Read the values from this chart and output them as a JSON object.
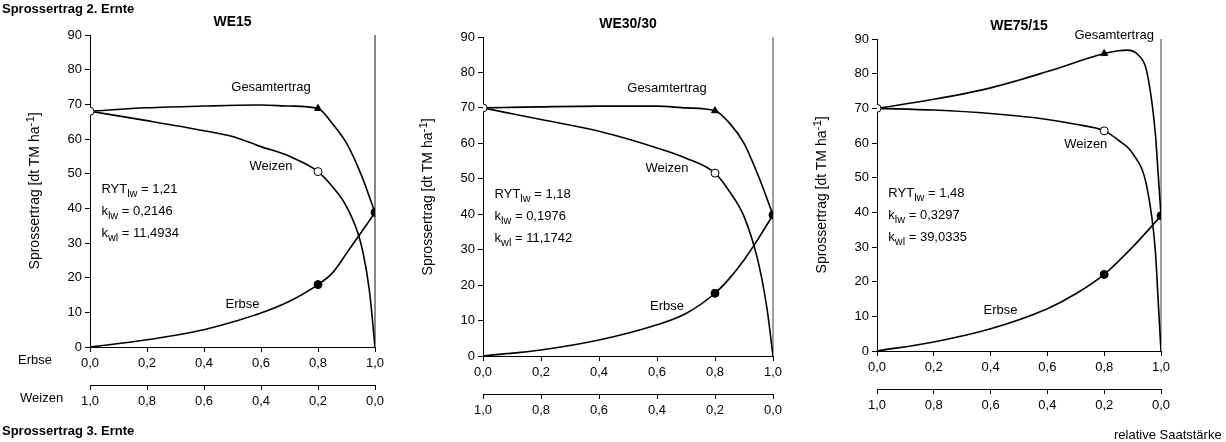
{
  "chart_data": [
    {
      "type": "other",
      "title": "Sprossertrag 2. Ernte",
      "annotations": [
        "Sprossertrag 3. Ernte",
        "relative Saatstärke"
      ]
    },
    {
      "type": "line",
      "title": "WE15",
      "ylabel": "Sprossertrag [dt TM ha$^{-1}$]",
      "xlabel": "Erbse",
      "x2label": "Weizen",
      "xlim": [
        0,
        1
      ],
      "xticks": [
        {
          "value": 0,
          "label": "0,0"
        },
        {
          "value": 0.2,
          "label": "0,2"
        },
        {
          "value": 0.4,
          "label": "0,4"
        },
        {
          "value": 0.6,
          "label": "0,6"
        },
        {
          "value": 0.8,
          "label": "0,8"
        },
        {
          "value": 1,
          "label": "1,0"
        }
      ],
      "x2lim": [
        1,
        0
      ],
      "x2ticks": [
        {
          "value": 1,
          "label": "1,0"
        },
        {
          "value": 0.8,
          "label": "0,8"
        },
        {
          "value": 0.6,
          "label": "0,6"
        },
        {
          "value": 0.4,
          "label": "0,4"
        },
        {
          "value": 0.2,
          "label": "0,2"
        },
        {
          "value": 0,
          "label": "0,0"
        }
      ],
      "ylim": [
        0,
        90
      ],
      "yticks": [
        0,
        10,
        20,
        30,
        40,
        50,
        60,
        70,
        80,
        90
      ],
      "grid": false,
      "legend": false,
      "ref_lines": [
        {
          "axis": "x",
          "value": 1,
          "color": "#606060"
        }
      ],
      "annotations": [
        "RYT$_{lw}$ = 1,21",
        "k$_{lw}$ = 0,2146",
        "k$_{wl}$ = 11,4934"
      ],
      "series": [
        {
          "name": "Gesamtertrag",
          "type": "line",
          "marker": "none",
          "color": "#000000",
          "x": [
            0,
            0.2,
            0.4,
            0.6,
            0.7,
            0.8,
            0.85,
            0.9,
            0.95,
            1
          ],
          "values": [
            68,
            69,
            69.5,
            69.8,
            69.5,
            68.8,
            64.5,
            58.8,
            50,
            38.8
          ]
        },
        {
          "name": "Weizen",
          "type": "line",
          "marker": "none",
          "color": "#000000",
          "x": [
            0,
            0.2,
            0.4,
            0.5,
            0.6,
            0.7,
            0.8,
            0.85,
            0.9,
            0.95,
            0.98,
            1
          ],
          "values": [
            68,
            65.3,
            62.4,
            60.7,
            57.8,
            55,
            50.6,
            46.3,
            40.5,
            30,
            16.5,
            0
          ]
        },
        {
          "name": "Erbse",
          "type": "line",
          "marker": "none",
          "color": "#000000",
          "x": [
            0,
            0.2,
            0.4,
            0.5,
            0.6,
            0.7,
            0.8,
            0.85,
            0.9,
            0.95,
            1
          ],
          "values": [
            0,
            2.1,
            5,
            7.2,
            9.8,
            13.2,
            18,
            21.3,
            27,
            32.9,
            38.8
          ]
        },
        {
          "type": "scatter",
          "marker": "circle",
          "color": "#ffffff",
          "x": [
            0,
            0.8
          ],
          "values": [
            68,
            50.6
          ]
        },
        {
          "type": "scatter",
          "marker": "triangle",
          "color": "#000000",
          "x": [
            0.8
          ],
          "values": [
            68.8
          ]
        },
        {
          "type": "scatter",
          "marker": "circle",
          "color": "#000000",
          "x": [
            0.8,
            1
          ],
          "values": [
            18,
            38.8
          ]
        }
      ]
    },
    {
      "type": "line",
      "title": "WE30/30",
      "ylabel": "Sprossertrag [dt TM ha$^{-1}$]",
      "xlim": [
        0,
        1
      ],
      "xticks": [
        {
          "value": 0,
          "label": "0,0"
        },
        {
          "value": 0.2,
          "label": "0,2"
        },
        {
          "value": 0.4,
          "label": "0,4"
        },
        {
          "value": 0.6,
          "label": "0,6"
        },
        {
          "value": 0.8,
          "label": "0,8"
        },
        {
          "value": 1,
          "label": "1,0"
        }
      ],
      "x2lim": [
        1,
        0
      ],
      "x2ticks": [
        {
          "value": 1,
          "label": "1,0"
        },
        {
          "value": 0.8,
          "label": "0,8"
        },
        {
          "value": 0.6,
          "label": "0,6"
        },
        {
          "value": 0.4,
          "label": "0,4"
        },
        {
          "value": 0.2,
          "label": "0,2"
        },
        {
          "value": 0,
          "label": "0,0"
        }
      ],
      "ylim": [
        0,
        90
      ],
      "yticks": [
        0,
        10,
        20,
        30,
        40,
        50,
        60,
        70,
        80,
        90
      ],
      "grid": false,
      "legend": false,
      "ref_lines": [
        {
          "axis": "x",
          "value": 1,
          "color": "#808080"
        }
      ],
      "annotations": [
        "RYT$_{lw}$ = 1,18",
        "k$_{lw}$ = 0,1976",
        "k$_{wl}$ = 11,1742"
      ],
      "series": [
        {
          "name": "Gesamtertrag",
          "type": "line",
          "marker": "none",
          "color": "#000000",
          "x": [
            0,
            0.2,
            0.4,
            0.6,
            0.7,
            0.8,
            0.85,
            0.9,
            0.95,
            1
          ],
          "values": [
            70,
            70.3,
            70.5,
            70.5,
            70,
            69.2,
            65.7,
            60,
            50.7,
            39.8
          ]
        },
        {
          "name": "Weizen",
          "type": "line",
          "marker": "none",
          "color": "#000000",
          "x": [
            0,
            0.2,
            0.4,
            0.6,
            0.7,
            0.8,
            0.85,
            0.9,
            0.95,
            0.98,
            1
          ],
          "values": [
            70,
            66.7,
            63.4,
            58.7,
            55.8,
            51.6,
            46.4,
            39.4,
            26.2,
            13,
            0
          ]
        },
        {
          "name": "Erbse",
          "type": "line",
          "marker": "none",
          "color": "#000000",
          "x": [
            0,
            0.2,
            0.4,
            0.6,
            0.7,
            0.8,
            0.85,
            0.9,
            0.95,
            1
          ],
          "values": [
            0,
            1.7,
            4.5,
            8.8,
            12,
            17.7,
            21.9,
            27.1,
            33.2,
            39.8
          ]
        },
        {
          "type": "scatter",
          "marker": "circle",
          "color": "#ffffff",
          "x": [
            0,
            0.8
          ],
          "values": [
            70,
            51.6
          ]
        },
        {
          "type": "scatter",
          "marker": "triangle",
          "color": "#000000",
          "x": [
            0.8
          ],
          "values": [
            69.2
          ]
        },
        {
          "type": "scatter",
          "marker": "circle",
          "color": "#000000",
          "x": [
            0.8,
            1
          ],
          "values": [
            17.7,
            39.8
          ]
        }
      ]
    },
    {
      "type": "line",
      "title": "WE75/15",
      "ylabel": "Sprossertrag [dt TM ha$^{-1}$]",
      "xlim": [
        0,
        1
      ],
      "xticks": [
        {
          "value": 0,
          "label": "0,0"
        },
        {
          "value": 0.2,
          "label": "0,2"
        },
        {
          "value": 0.4,
          "label": "0,4"
        },
        {
          "value": 0.6,
          "label": "0,6"
        },
        {
          "value": 0.8,
          "label": "0,8"
        },
        {
          "value": 1,
          "label": "1,0"
        }
      ],
      "x2lim": [
        1,
        0
      ],
      "x2ticks": [
        {
          "value": 1,
          "label": "1,0"
        },
        {
          "value": 0.8,
          "label": "0,8"
        },
        {
          "value": 0.6,
          "label": "0,6"
        },
        {
          "value": 0.4,
          "label": "0,4"
        },
        {
          "value": 0.2,
          "label": "0,2"
        },
        {
          "value": 0,
          "label": "0,0"
        }
      ],
      "ylim": [
        0,
        90
      ],
      "yticks": [
        0,
        10,
        20,
        30,
        40,
        50,
        60,
        70,
        80,
        90
      ],
      "grid": false,
      "legend": false,
      "ref_lines": [
        {
          "axis": "x",
          "value": 1,
          "color": "#808080"
        }
      ],
      "annotations": [
        "RYT$_{lw}$ = 1,48",
        "k$_{lw}$ = 0,3297",
        "k$_{wl}$ = 39,0335"
      ],
      "series": [
        {
          "name": "Gesamtertrag",
          "type": "line",
          "marker": "none",
          "color": "#000000",
          "x": [
            0,
            0.2,
            0.4,
            0.6,
            0.8,
            0.85,
            0.88,
            0.92,
            0.95,
            0.98,
            0.99,
            1
          ],
          "values": [
            70,
            72.6,
            75.9,
            80.6,
            85.8,
            86.6,
            86.8,
            85.4,
            80.6,
            62.8,
            51.2,
            39
          ]
        },
        {
          "name": "Weizen",
          "type": "line",
          "marker": "none",
          "color": "#000000",
          "x": [
            0,
            0.2,
            0.4,
            0.6,
            0.7,
            0.8,
            0.85,
            0.9,
            0.95,
            0.98,
            0.99,
            1
          ],
          "values": [
            70,
            69.5,
            68.5,
            66.8,
            65.4,
            63.5,
            60.8,
            57,
            47.4,
            29,
            14.6,
            0
          ]
        },
        {
          "name": "Erbse",
          "type": "line",
          "marker": "none",
          "color": "#000000",
          "x": [
            0,
            0.2,
            0.4,
            0.6,
            0.7,
            0.8,
            0.9,
            1
          ],
          "values": [
            0,
            2.6,
            6.4,
            12.2,
            16.5,
            22.1,
            30,
            39
          ]
        },
        {
          "type": "scatter",
          "marker": "circle",
          "color": "#ffffff",
          "x": [
            0,
            0.8
          ],
          "values": [
            70,
            63.5
          ]
        },
        {
          "type": "scatter",
          "marker": "triangle",
          "color": "#000000",
          "x": [
            0.8
          ],
          "values": [
            85.8
          ]
        },
        {
          "type": "scatter",
          "marker": "circle",
          "color": "#000000",
          "x": [
            0.8,
            1
          ],
          "values": [
            22.1,
            39
          ]
        }
      ]
    }
  ]
}
